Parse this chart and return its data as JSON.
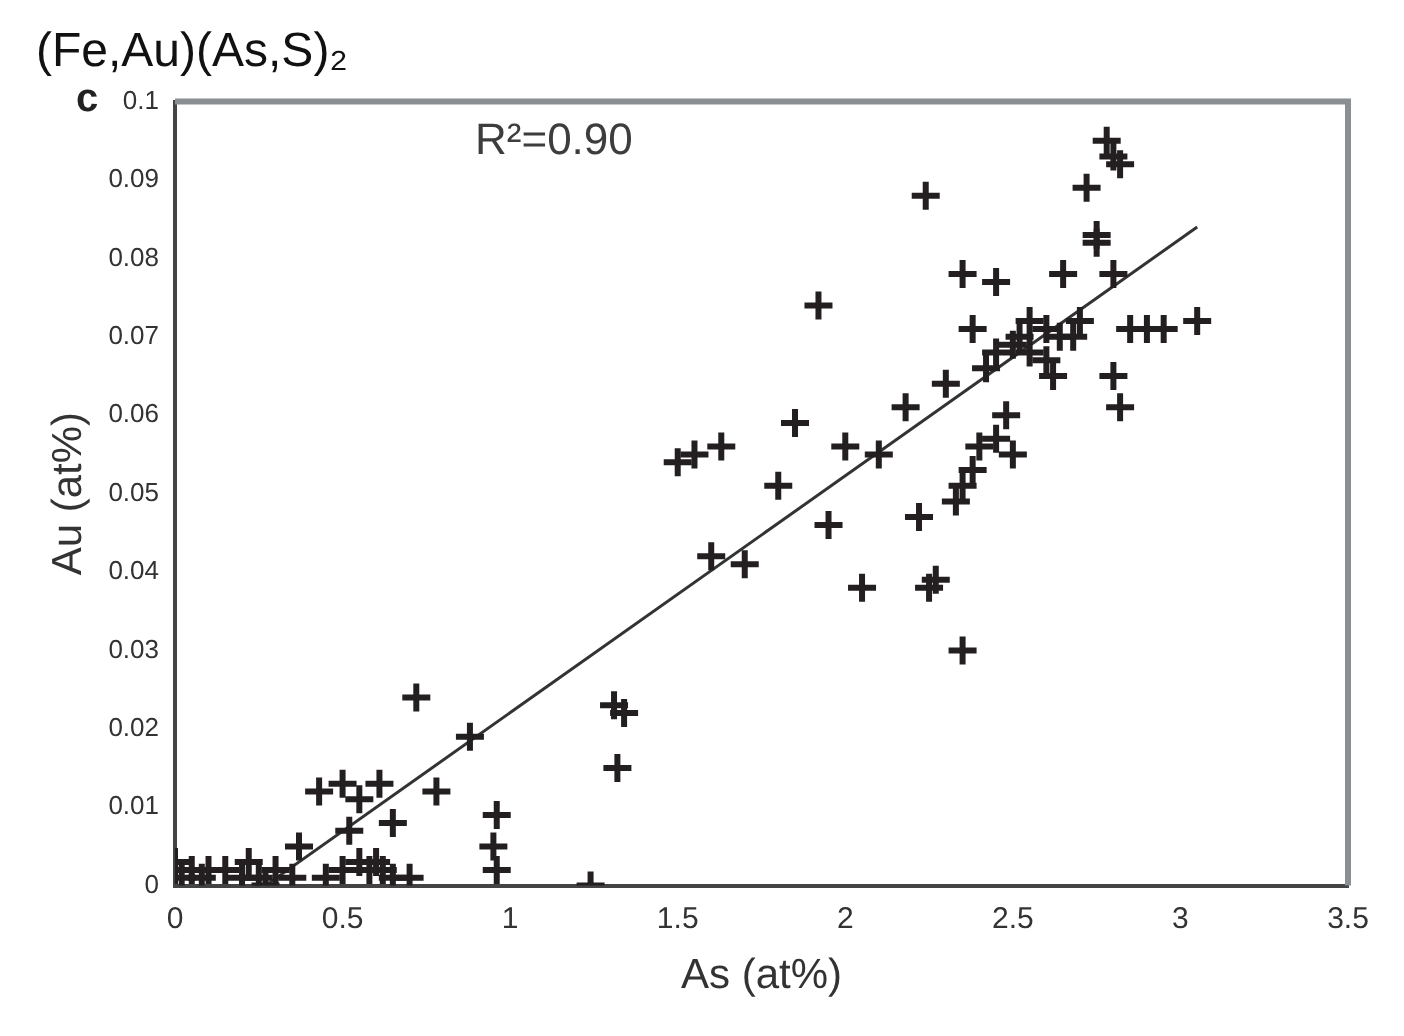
{
  "chart_data": {
    "type": "scatter",
    "title": "(Fe,Au)(As,S)₂",
    "xlabel": "As (at%)",
    "ylabel": "Au (at%)",
    "annotations": [
      "c",
      "R²=0.90"
    ],
    "xlim": [
      0,
      3.5
    ],
    "ylim": [
      0,
      0.1
    ],
    "xticks": [
      0,
      0.5,
      1,
      1.5,
      2,
      2.5,
      3,
      3.5
    ],
    "yticks": [
      0,
      0.01,
      0.02,
      0.03,
      0.04,
      0.05,
      0.06,
      0.07,
      0.08,
      0.09,
      0.1
    ],
    "grid": false,
    "legend": false,
    "marker": "cross",
    "series": [
      {
        "color": "#231f20",
        "x": [
          0,
          0,
          0.02,
          0.05,
          0.08,
          0.1,
          0.15,
          0.2,
          0.22,
          0.25,
          0.27,
          0.3,
          0.35,
          0.45,
          0.5,
          0.55,
          0.58,
          0.6,
          0.62,
          0.65,
          0.7,
          0.72,
          0.88,
          0.43,
          0.5,
          0.61,
          0.78,
          0.55,
          0.65,
          0.52,
          0.37,
          0.96,
          0.95,
          0.96,
          1.24,
          1.31,
          1.34,
          1.32,
          1.5,
          1.55,
          1.63,
          1.6,
          1.7,
          1.8,
          1.85,
          1.92,
          1.95,
          2.0,
          2.05,
          2.1,
          2.18,
          2.22,
          2.24,
          2.25,
          2.27,
          2.3,
          2.33,
          2.35,
          2.35,
          2.38,
          2.4,
          2.35,
          2.45,
          2.45,
          2.5,
          2.55,
          2.6,
          2.62,
          2.65,
          2.68,
          2.7,
          2.72,
          2.75,
          2.78,
          2.8,
          2.82,
          2.8,
          2.8,
          2.82,
          2.85,
          2.9,
          2.95,
          3.05,
          2.5,
          2.48,
          2.45,
          2.38,
          2.55,
          2.75,
          2.52,
          2.42,
          2.6,
          2.64
        ],
        "values": [
          0.002,
          0.003,
          0.001,
          0.002,
          0.001,
          0.002,
          0.002,
          0.001,
          0.003,
          0.001,
          0,
          0.002,
          0.001,
          0.001,
          0.002,
          0.003,
          0.002,
          0.003,
          0.002,
          0.001,
          0.001,
          0.024,
          0.019,
          0.012,
          0.013,
          0.013,
          0.012,
          0.011,
          0.008,
          0.007,
          0.005,
          0.009,
          0.005,
          0.002,
          0,
          0.023,
          0.022,
          0.015,
          0.054,
          0.055,
          0.056,
          0.042,
          0.041,
          0.051,
          0.059,
          0.074,
          0.046,
          0.056,
          0.038,
          0.055,
          0.061,
          0.047,
          0.088,
          0.038,
          0.039,
          0.064,
          0.049,
          0.051,
          0.03,
          0.053,
          0.056,
          0.078,
          0.077,
          0.068,
          0.069,
          0.068,
          0.067,
          0.065,
          0.078,
          0.07,
          0.072,
          0.089,
          0.082,
          0.095,
          0.093,
          0.092,
          0.078,
          0.065,
          0.061,
          0.071,
          0.071,
          0.071,
          0.072,
          0.055,
          0.06,
          0.057,
          0.071,
          0.072,
          0.083,
          0.07,
          0.066,
          0.071,
          0.07
        ]
      },
      {
        "type": "line",
        "color": "#333333",
        "marker": "none",
        "x": [
          0.27,
          3.05
        ],
        "values": [
          0,
          0.084
        ]
      }
    ]
  }
}
